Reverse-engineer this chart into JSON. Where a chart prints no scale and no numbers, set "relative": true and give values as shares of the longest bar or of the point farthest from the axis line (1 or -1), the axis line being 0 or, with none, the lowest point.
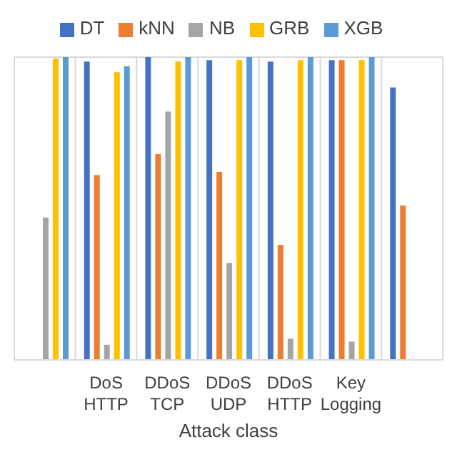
{
  "chart_data": {
    "type": "bar",
    "relative": true,
    "xlabel": "Attack class",
    "categories": [
      null,
      "DoS HTTP",
      "DDoS TCP",
      "DDoS UDP",
      "DDoS HTTP",
      "Key Logging",
      null
    ],
    "series": [
      {
        "name": "DT",
        "color": "#4472c4",
        "values": [
          null,
          0.985,
          1.0,
          0.99,
          0.985,
          0.99,
          0.9
        ]
      },
      {
        "name": "kNN",
        "color": "#ed7d31",
        "values": [
          null,
          0.61,
          0.68,
          0.62,
          0.38,
          0.99,
          0.51
        ]
      },
      {
        "name": "NB",
        "color": "#a5a5a5",
        "values": [
          0.47,
          0.05,
          0.82,
          0.32,
          0.07,
          0.06,
          null
        ]
      },
      {
        "name": "GRB",
        "color": "#ffc000",
        "values": [
          0.995,
          0.95,
          0.985,
          0.99,
          0.99,
          0.99,
          null
        ]
      },
      {
        "name": "XGB",
        "color": "#5b9bd5",
        "values": [
          1.0,
          0.97,
          1.0,
          1.0,
          1.0,
          1.0,
          null
        ]
      }
    ],
    "grid": true,
    "legend": "top",
    "tick_labels": "x"
  }
}
